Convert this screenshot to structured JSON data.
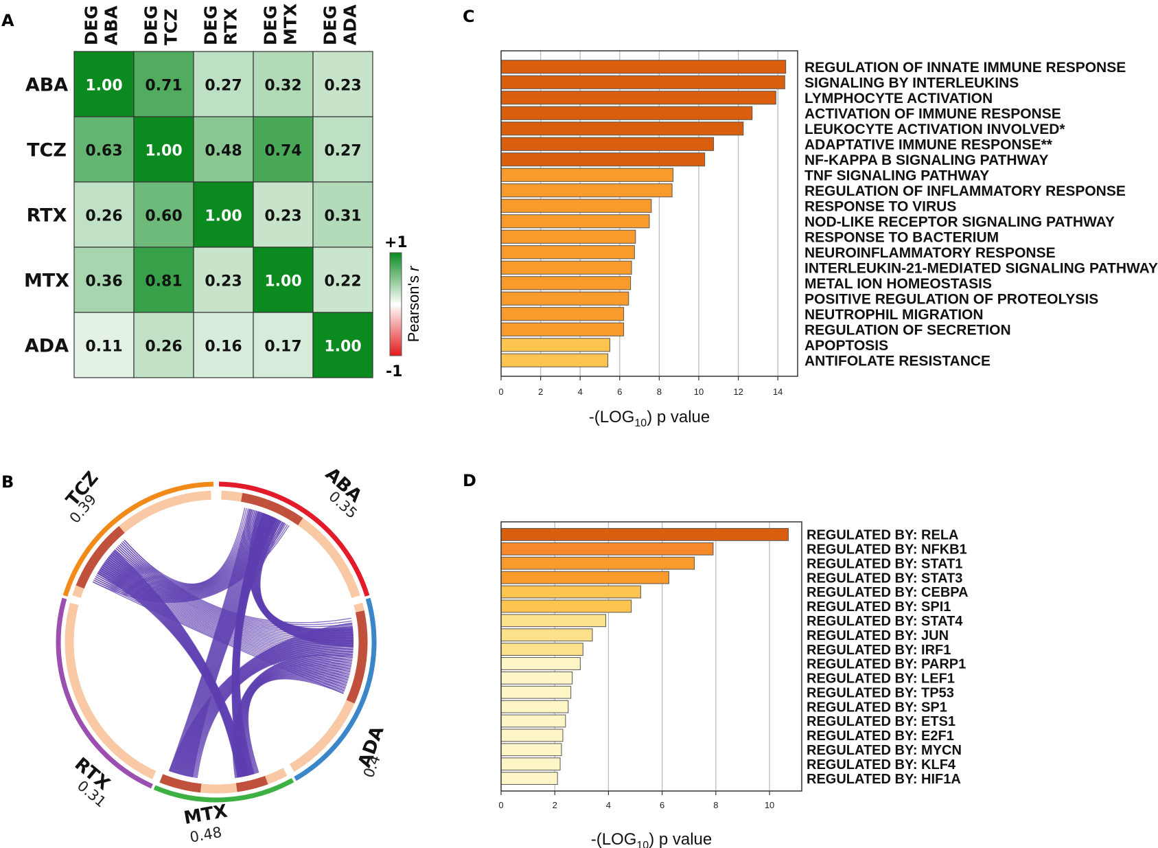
{
  "chart_data": [
    {
      "panel": "A",
      "type": "heatmap",
      "columns": [
        {
          "top": "DEG",
          "bottom": "ABA"
        },
        {
          "top": "DEG",
          "bottom": "TCZ"
        },
        {
          "top": "DEG",
          "bottom": "RTX"
        },
        {
          "top": "DEG",
          "bottom": "MTX"
        },
        {
          "top": "DEG",
          "bottom": "ADA"
        }
      ],
      "rows": [
        "ABA",
        "TCZ",
        "RTX",
        "MTX",
        "ADA"
      ],
      "values": [
        [
          1.0,
          0.71,
          0.27,
          0.32,
          0.23
        ],
        [
          0.63,
          1.0,
          0.48,
          0.74,
          0.27
        ],
        [
          0.26,
          0.6,
          1.0,
          0.23,
          0.31
        ],
        [
          0.36,
          0.81,
          0.23,
          1.0,
          0.22
        ],
        [
          0.11,
          0.26,
          0.16,
          0.17,
          1.0
        ]
      ],
      "colorbar": {
        "max_label": "+1",
        "min_label": "-1",
        "label": "Pearson's",
        "label_italic": "r",
        "colors": {
          "pos": "#0b8a1f",
          "mid": "#ffffff",
          "neg": "#e41a1c"
        }
      }
    },
    {
      "panel": "B",
      "type": "chord",
      "segments": [
        {
          "name": "ABA",
          "value": "0.35",
          "color": "#e31a2a"
        },
        {
          "name": "ADA",
          "value": "0.4",
          "color": "#3a86c8"
        },
        {
          "name": "MTX",
          "value": "0.48",
          "color": "#3cb043"
        },
        {
          "name": "RTX",
          "value": "0.31",
          "color": "#9b4fb0"
        },
        {
          "name": "TCZ",
          "value": "0.39",
          "color": "#f28a1a"
        }
      ],
      "inner_ring_color": "#f9c8a4",
      "highlight_color": "#c0513d",
      "link_color": "#5d3fb0"
    },
    {
      "panel": "C",
      "type": "bar",
      "orientation": "horizontal",
      "xlabel_pre": "-(LOG",
      "xlabel_sub": "10",
      "xlabel_post": ") p value",
      "xlim": [
        0,
        15
      ],
      "xticks": [
        0,
        2,
        4,
        6,
        8,
        10,
        12,
        14
      ],
      "categories": [
        "REGULATION OF INNATE IMMUNE RESPONSE",
        "SIGNALING BY INTERLEUKINS",
        "LYMPHOCYTE ACTIVATION",
        "ACTIVATION OF IMMUNE RESPONSE",
        "LEUKOCYTE ACTIVATION INVOLVED*",
        "ADAPTATIVE IMMUNE RESPONSE**",
        "NF-KAPPA B SIGNALING PATHWAY",
        "TNF SIGNALING PATHWAY",
        "REGULATION OF INFLAMMATORY RESPONSE",
        "RESPONSE TO VIRUS",
        "NOD-LIKE RECEPTOR SIGNALING PATHWAY",
        "RESPONSE TO BACTERIUM",
        "NEUROINFLAMMATORY RESPONSE",
        "INTERLEUKIN-21-MEDIATED SIGNALING PATHWAY",
        "METAL ION HOMEOSTASIS",
        "POSITIVE REGULATION OF PROTEOLYSIS",
        "NEUTROPHIL MIGRATION",
        "REGULATION OF SECRETION",
        "APOPTOSIS",
        "ANTIFOLATE RESISTANCE"
      ],
      "values": [
        14.4,
        14.35,
        13.9,
        12.7,
        12.25,
        10.75,
        10.3,
        8.7,
        8.65,
        7.6,
        7.5,
        6.8,
        6.75,
        6.6,
        6.55,
        6.45,
        6.2,
        6.2,
        5.5,
        5.4
      ],
      "colors": [
        "#d95f0e",
        "#d95f0e",
        "#d95f0e",
        "#d95f0e",
        "#d95f0e",
        "#d95f0e",
        "#d95f0e",
        "#f99b2c",
        "#f99b2c",
        "#f99b2c",
        "#f99b2c",
        "#f99b2c",
        "#f99b2c",
        "#f99b2c",
        "#f99b2c",
        "#f99b2c",
        "#f99b2c",
        "#f99b2c",
        "#fdc550",
        "#fdc550"
      ]
    },
    {
      "panel": "D",
      "type": "bar",
      "orientation": "horizontal",
      "xlabel_pre": "-(LOG",
      "xlabel_sub": "10",
      "xlabel_post": ") p value",
      "xlim": [
        0,
        11.2
      ],
      "xticks": [
        0,
        2,
        4,
        6,
        8,
        10
      ],
      "categories": [
        "REGULATED BY: RELA",
        "REGULATED BY: NFKB1",
        "REGULATED BY: STAT1",
        "REGULATED BY: STAT3",
        "REGULATED BY: CEBPA",
        "REGULATED BY: SPI1",
        "REGULATED BY: STAT4",
        "REGULATED BY: JUN",
        "REGULATED BY: IRF1",
        "REGULATED BY: PARP1",
        "REGULATED BY: LEF1",
        "REGULATED BY: TP53",
        "REGULATED BY: SP1",
        "REGULATED BY: ETS1",
        "REGULATED BY: E2F1",
        "REGULATED BY: MYCN",
        "REGULATED BY: KLF4",
        "REGULATED BY: HIF1A"
      ],
      "values": [
        10.7,
        7.9,
        7.2,
        6.25,
        5.2,
        4.85,
        3.9,
        3.4,
        3.05,
        2.95,
        2.65,
        2.6,
        2.5,
        2.4,
        2.3,
        2.25,
        2.2,
        2.1
      ],
      "colors": [
        "#d95f0e",
        "#f7892a",
        "#f99b2c",
        "#f99b2c",
        "#fdc550",
        "#fdc550",
        "#fde08a",
        "#fde08a",
        "#fde08a",
        "#fff6c8",
        "#fff6c8",
        "#fff6c8",
        "#fff6c8",
        "#fff6c8",
        "#fff6c8",
        "#fff6c8",
        "#fff6c8",
        "#fff6c8"
      ]
    }
  ],
  "panel_labels": {
    "a": "A",
    "b": "B",
    "c": "C",
    "d": "D"
  }
}
